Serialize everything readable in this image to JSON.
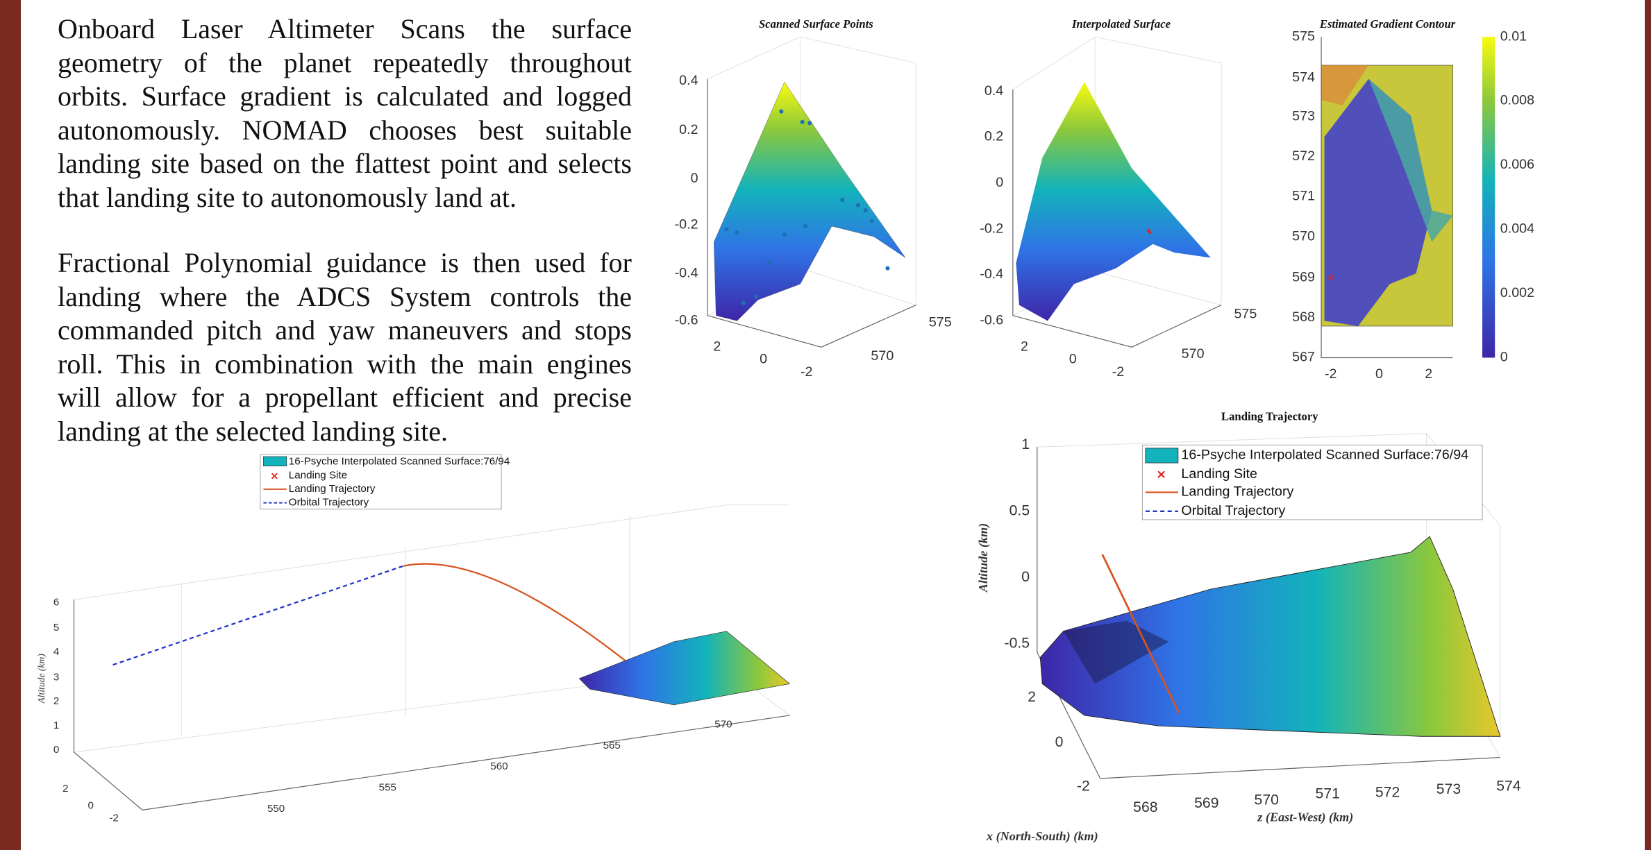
{
  "paragraphs": [
    "Onboard Laser Altimeter Scans the surface geometry of the planet repeatedly throughout orbits. Surface gradient is calculated and logged autonomously. NOMAD chooses best suitable landing site based on the flattest point and selects that landing site to autonomously land at.",
    "Fractional Polynomial guidance is then used for landing where the ADCS System controls the commanded pitch and yaw maneuvers and stops roll. This in combination with the main engines will allow for a propellant efficient and precise landing at the selected landing site."
  ],
  "figures": {
    "scanned": {
      "title": "Scanned Surface Points",
      "z_ticks": [
        "0.4",
        "0.2",
        "0",
        "-0.2",
        "-0.4",
        "-0.6"
      ],
      "x_ticks": [
        "2",
        "0",
        "-2"
      ],
      "y_ticks": [
        "575",
        "570"
      ]
    },
    "interpolated": {
      "title": "Interpolated Surface",
      "z_ticks": [
        "0.4",
        "0.2",
        "0",
        "-0.2",
        "-0.4",
        "-0.6"
      ],
      "x_ticks": [
        "2",
        "0",
        "-2"
      ],
      "y_ticks": [
        "575",
        "570"
      ]
    },
    "gradient": {
      "title": "Estimated Gradient Contour",
      "y_ticks": [
        "575",
        "574",
        "573",
        "572",
        "571",
        "570",
        "569",
        "568",
        "567"
      ],
      "x_ticks": [
        "-2",
        "0",
        "2"
      ],
      "colorbar_ticks": [
        "0.01",
        "0.008",
        "0.006",
        "0.004",
        "0.002",
        "0"
      ]
    },
    "overview": {
      "legend": [
        "16-Psyche Interpolated Scanned Surface:76/94",
        "Landing Site",
        "Landing Trajectory",
        "Orbital Trajectory"
      ],
      "z_label": "Altitude (km)",
      "z_ticks": [
        "6",
        "5",
        "4",
        "3",
        "2",
        "1",
        "0"
      ],
      "x_ticks": [
        "2",
        "0",
        "-2"
      ],
      "y_ticks": [
        "550",
        "555",
        "560",
        "565",
        "570"
      ]
    },
    "landing": {
      "title": "Landing Trajectory",
      "legend": [
        "16-Psyche Interpolated Scanned Surface:76/94",
        "Landing Site",
        "Landing Trajectory",
        "Orbital Trajectory"
      ],
      "z_label": "Altitude (km)",
      "z_ticks": [
        "1",
        "0.5",
        "0",
        "-0.5"
      ],
      "x_ticks": [
        "2",
        "0",
        "-2"
      ],
      "y_ticks": [
        "568",
        "569",
        "570",
        "571",
        "572",
        "573",
        "574"
      ],
      "y_label": "z (East-West) (km)",
      "x_label": "x (North-South) (km)"
    }
  }
}
